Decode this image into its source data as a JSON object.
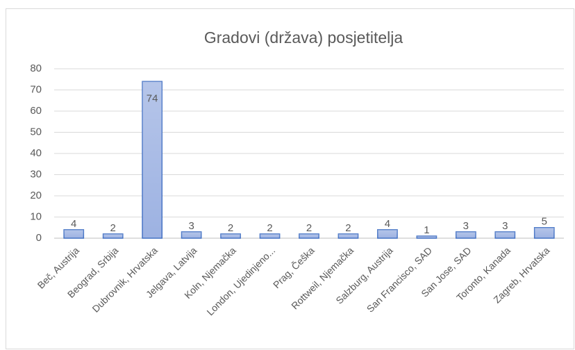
{
  "chart_data": {
    "type": "bar",
    "title": "Gradovi  (država)  posjetitelja",
    "categories": [
      "Beč, Austrija",
      "Beograd, Srbija",
      "Dubrovnik, Hrvatska",
      "Jelgava, Latvija",
      "Koln, Njemačka",
      "London, Ujedinjeno...",
      "Prag, Češka",
      "Rottweil, Njemačka",
      "Salzburg, Austrija",
      "San Francisco, SAD",
      "San Jose, SAD",
      "Toronto, Kanada",
      "Zagreb, Hrvatska"
    ],
    "values": [
      4,
      2,
      74,
      3,
      2,
      2,
      2,
      2,
      4,
      1,
      3,
      3,
      5
    ],
    "color": "#9db2e2",
    "ylim": [
      0,
      80
    ],
    "yticks": [
      0,
      10,
      20,
      30,
      40,
      50,
      60,
      70,
      80
    ],
    "grid": true
  }
}
